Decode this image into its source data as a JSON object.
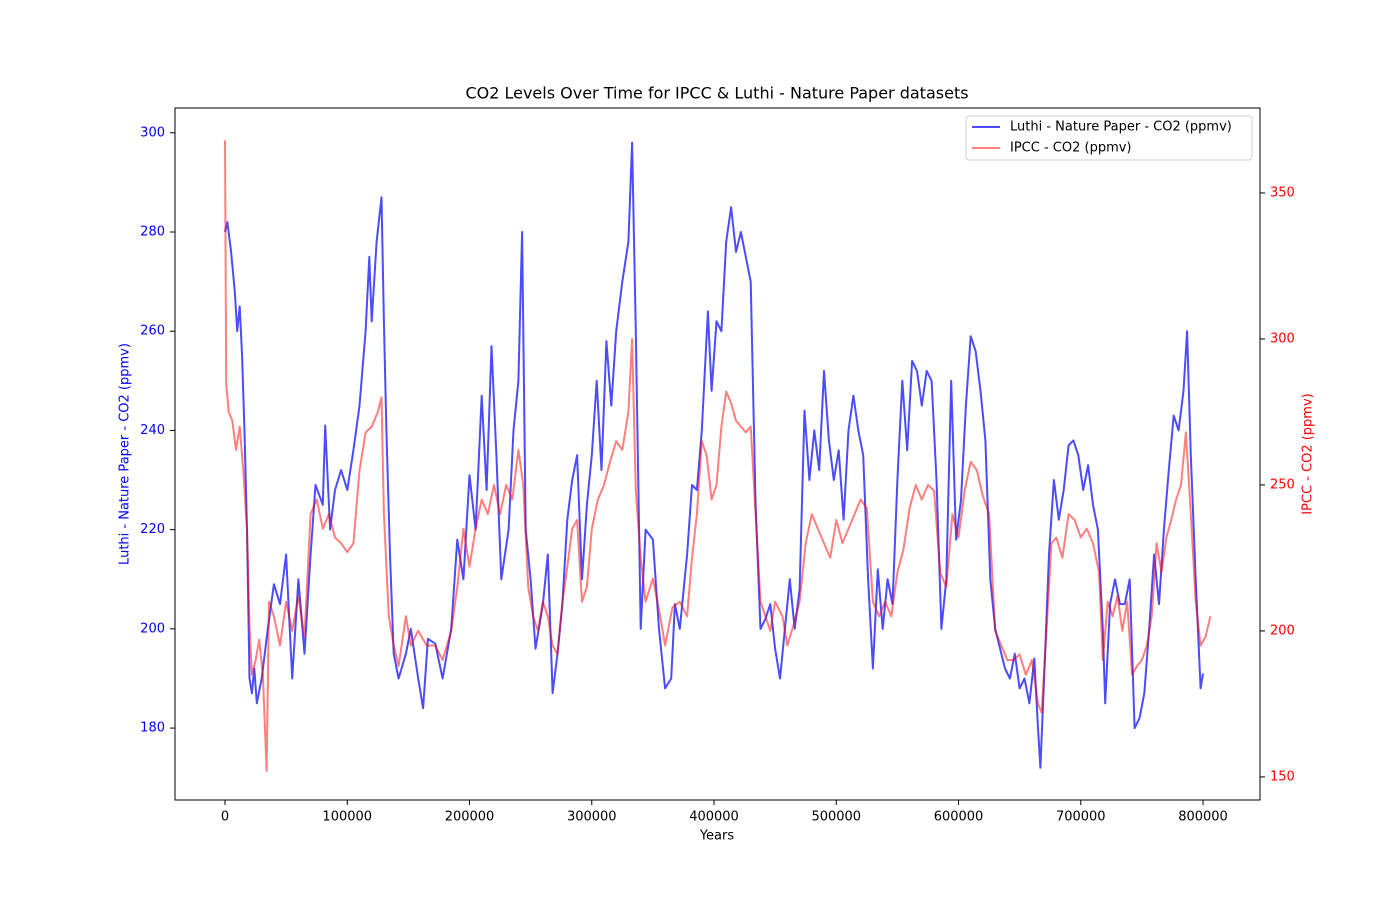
{
  "chart_data": {
    "type": "line",
    "title": "CO2 Levels Over Time for IPCC & Luthi - Nature Paper datasets",
    "xlabel": "Years",
    "ylabel": "Luthi - Nature Paper - CO2 (ppmv)",
    "y2label": "IPCC - CO2 (ppmv)",
    "ylabel_color": "blue",
    "y2label_color": "red",
    "xlim": [
      -40900,
      846600
    ],
    "ylim": [
      165.5,
      305
    ],
    "y2lim": [
      142.1,
      379.1
    ],
    "xticks": [
      0,
      100000,
      200000,
      300000,
      400000,
      500000,
      600000,
      700000,
      800000
    ],
    "yticks": [
      180,
      200,
      220,
      240,
      260,
      280,
      300
    ],
    "y2ticks": [
      150,
      200,
      250,
      300,
      350
    ],
    "legend": "upper right",
    "series": [
      {
        "name": "Luthi - Nature Paper - CO2 (ppmv)",
        "color": "blue",
        "alpha": 0.7,
        "axis": "y",
        "x": [
          0,
          2000,
          5000,
          8000,
          10000,
          12000,
          14000,
          16000,
          18000,
          20000,
          22000,
          24000,
          26000,
          30000,
          35000,
          40000,
          45000,
          50000,
          55000,
          60000,
          65000,
          70000,
          74000,
          80000,
          82000,
          86000,
          90000,
          95000,
          100000,
          105000,
          110000,
          115000,
          118000,
          120000,
          124000,
          128000,
          130000,
          132000,
          135000,
          138000,
          142000,
          148000,
          152000,
          158000,
          162000,
          166000,
          172000,
          178000,
          185000,
          190000,
          195000,
          200000,
          205000,
          210000,
          214000,
          218000,
          222000,
          226000,
          232000,
          236000,
          240000,
          243000,
          246000,
          250000,
          254000,
          260000,
          264000,
          268000,
          272000,
          276000,
          280000,
          284000,
          288000,
          292000,
          296000,
          300000,
          304000,
          308000,
          312000,
          316000,
          320000,
          325000,
          330000,
          333000,
          336000,
          340000,
          344000,
          350000,
          355000,
          360000,
          365000,
          368000,
          372000,
          378000,
          382000,
          386000,
          390000,
          395000,
          398000,
          402000,
          406000,
          410000,
          414000,
          418000,
          422000,
          426000,
          430000,
          434000,
          438000,
          442000,
          446000,
          450000,
          454000,
          458000,
          462000,
          466000,
          470000,
          474000,
          478000,
          482000,
          486000,
          490000,
          494000,
          498000,
          502000,
          506000,
          510000,
          514000,
          518000,
          522000,
          526000,
          530000,
          534000,
          538000,
          542000,
          546000,
          550000,
          554000,
          558000,
          562000,
          566000,
          570000,
          574000,
          578000,
          582000,
          586000,
          590000,
          594000,
          598000,
          602000,
          606000,
          610000,
          614000,
          618000,
          622000,
          626000,
          630000,
          634000,
          638000,
          642000,
          646000,
          650000,
          654000,
          658000,
          662000,
          665000,
          667000,
          670000,
          674000,
          678000,
          682000,
          686000,
          690000,
          694000,
          698000,
          702000,
          706000,
          710000,
          714000,
          718000,
          720000,
          724000,
          728000,
          732000,
          736000,
          740000,
          744000,
          748000,
          752000,
          756000,
          760000,
          764000,
          768000,
          772000,
          776000,
          780000,
          784000,
          787000,
          790000,
          794000,
          798000,
          800000
        ],
        "values": [
          280,
          282,
          276,
          268,
          260,
          265,
          255,
          239,
          220,
          190,
          187,
          192,
          185,
          190,
          200,
          209,
          205,
          215,
          190,
          210,
          195,
          215,
          229,
          225,
          241,
          220,
          228,
          232,
          228,
          236,
          245,
          260,
          275,
          262,
          278,
          287,
          262,
          240,
          215,
          195,
          190,
          195,
          200,
          190,
          184,
          198,
          197,
          190,
          200,
          218,
          210,
          231,
          220,
          247,
          228,
          257,
          235,
          210,
          220,
          240,
          250,
          280,
          220,
          210,
          196,
          205,
          215,
          187,
          195,
          205,
          222,
          230,
          235,
          210,
          225,
          235,
          250,
          232,
          258,
          245,
          260,
          270,
          278,
          298,
          260,
          200,
          220,
          218,
          200,
          188,
          190,
          205,
          200,
          215,
          229,
          228,
          240,
          264,
          248,
          262,
          260,
          278,
          285,
          276,
          280,
          275,
          270,
          225,
          200,
          202,
          205,
          196,
          190,
          200,
          210,
          200,
          208,
          244,
          230,
          240,
          232,
          252,
          238,
          230,
          236,
          222,
          240,
          247,
          240,
          235,
          210,
          192,
          212,
          200,
          210,
          205,
          230,
          250,
          236,
          254,
          252,
          245,
          252,
          250,
          230,
          200,
          210,
          250,
          218,
          226,
          245,
          259,
          256,
          248,
          238,
          210,
          200,
          196,
          192,
          190,
          195,
          188,
          190,
          185,
          194,
          180,
          172,
          190,
          215,
          230,
          222,
          228,
          237,
          238,
          235,
          228,
          233,
          225,
          220,
          200,
          185,
          205,
          210,
          205,
          205,
          210,
          180,
          182,
          187,
          200,
          215,
          205,
          220,
          232,
          243,
          240,
          248,
          260,
          235,
          210,
          188,
          191
        ]
      },
      {
        "name": "IPCC - CO2 (ppmv)",
        "color": "red",
        "alpha": 0.5,
        "axis": "y2",
        "x": [
          0,
          1000,
          3000,
          6000,
          9000,
          12000,
          15000,
          18000,
          20000,
          22000,
          25000,
          28000,
          31000,
          34000,
          36000,
          40000,
          45000,
          50000,
          55000,
          60000,
          65000,
          70000,
          75000,
          80000,
          85000,
          90000,
          95000,
          100000,
          105000,
          110000,
          115000,
          120000,
          125000,
          128000,
          130000,
          134000,
          138000,
          142000,
          148000,
          152000,
          158000,
          165000,
          172000,
          178000,
          185000,
          190000,
          195000,
          200000,
          205000,
          210000,
          215000,
          220000,
          225000,
          230000,
          235000,
          240000,
          244000,
          248000,
          252000,
          256000,
          260000,
          264000,
          268000,
          272000,
          276000,
          280000,
          284000,
          288000,
          292000,
          296000,
          300000,
          305000,
          310000,
          315000,
          320000,
          325000,
          330000,
          333000,
          336000,
          340000,
          344000,
          350000,
          356000,
          360000,
          366000,
          372000,
          378000,
          382000,
          386000,
          390000,
          394000,
          398000,
          402000,
          406000,
          410000,
          414000,
          418000,
          422000,
          426000,
          430000,
          434000,
          438000,
          442000,
          446000,
          450000,
          456000,
          460000,
          465000,
          470000,
          475000,
          480000,
          485000,
          490000,
          495000,
          500000,
          505000,
          510000,
          515000,
          520000,
          525000,
          530000,
          535000,
          540000,
          545000,
          550000,
          555000,
          560000,
          565000,
          570000,
          575000,
          580000,
          585000,
          590000,
          595000,
          600000,
          605000,
          610000,
          615000,
          620000,
          625000,
          630000,
          635000,
          640000,
          645000,
          650000,
          655000,
          660000,
          665000,
          668000,
          672000,
          676000,
          680000,
          685000,
          690000,
          695000,
          700000,
          705000,
          710000,
          715000,
          718000,
          722000,
          726000,
          730000,
          734000,
          738000,
          742000,
          746000,
          750000,
          754000,
          758000,
          762000,
          766000,
          770000,
          774000,
          778000,
          782000,
          786000,
          790000,
          794000,
          798000,
          802000,
          806000
        ],
        "values": [
          368,
          285,
          275,
          272,
          262,
          270,
          255,
          235,
          202,
          185,
          190,
          197,
          185,
          152,
          210,
          205,
          195,
          210,
          200,
          212,
          198,
          240,
          245,
          235,
          240,
          232,
          230,
          227,
          230,
          255,
          268,
          270,
          275,
          280,
          240,
          205,
          195,
          188,
          205,
          195,
          200,
          195,
          195,
          190,
          200,
          215,
          235,
          222,
          235,
          245,
          240,
          250,
          240,
          250,
          245,
          262,
          250,
          215,
          205,
          200,
          210,
          205,
          195,
          192,
          210,
          222,
          235,
          238,
          210,
          215,
          235,
          245,
          250,
          258,
          265,
          262,
          275,
          300,
          248,
          225,
          210,
          218,
          205,
          195,
          208,
          210,
          205,
          225,
          240,
          265,
          260,
          245,
          250,
          270,
          282,
          278,
          272,
          270,
          268,
          270,
          240,
          210,
          205,
          200,
          210,
          205,
          195,
          202,
          210,
          230,
          240,
          235,
          230,
          225,
          238,
          230,
          235,
          240,
          245,
          242,
          210,
          205,
          210,
          205,
          220,
          228,
          242,
          250,
          245,
          250,
          248,
          220,
          215,
          240,
          232,
          248,
          258,
          255,
          246,
          240,
          200,
          195,
          190,
          190,
          192,
          185,
          190,
          175,
          172,
          200,
          230,
          232,
          225,
          240,
          238,
          232,
          235,
          230,
          220,
          190,
          210,
          205,
          212,
          200,
          210,
          185,
          188,
          190,
          195,
          205,
          230,
          220,
          232,
          238,
          245,
          250,
          268,
          240,
          210,
          195,
          198,
          205
        ]
      }
    ]
  }
}
